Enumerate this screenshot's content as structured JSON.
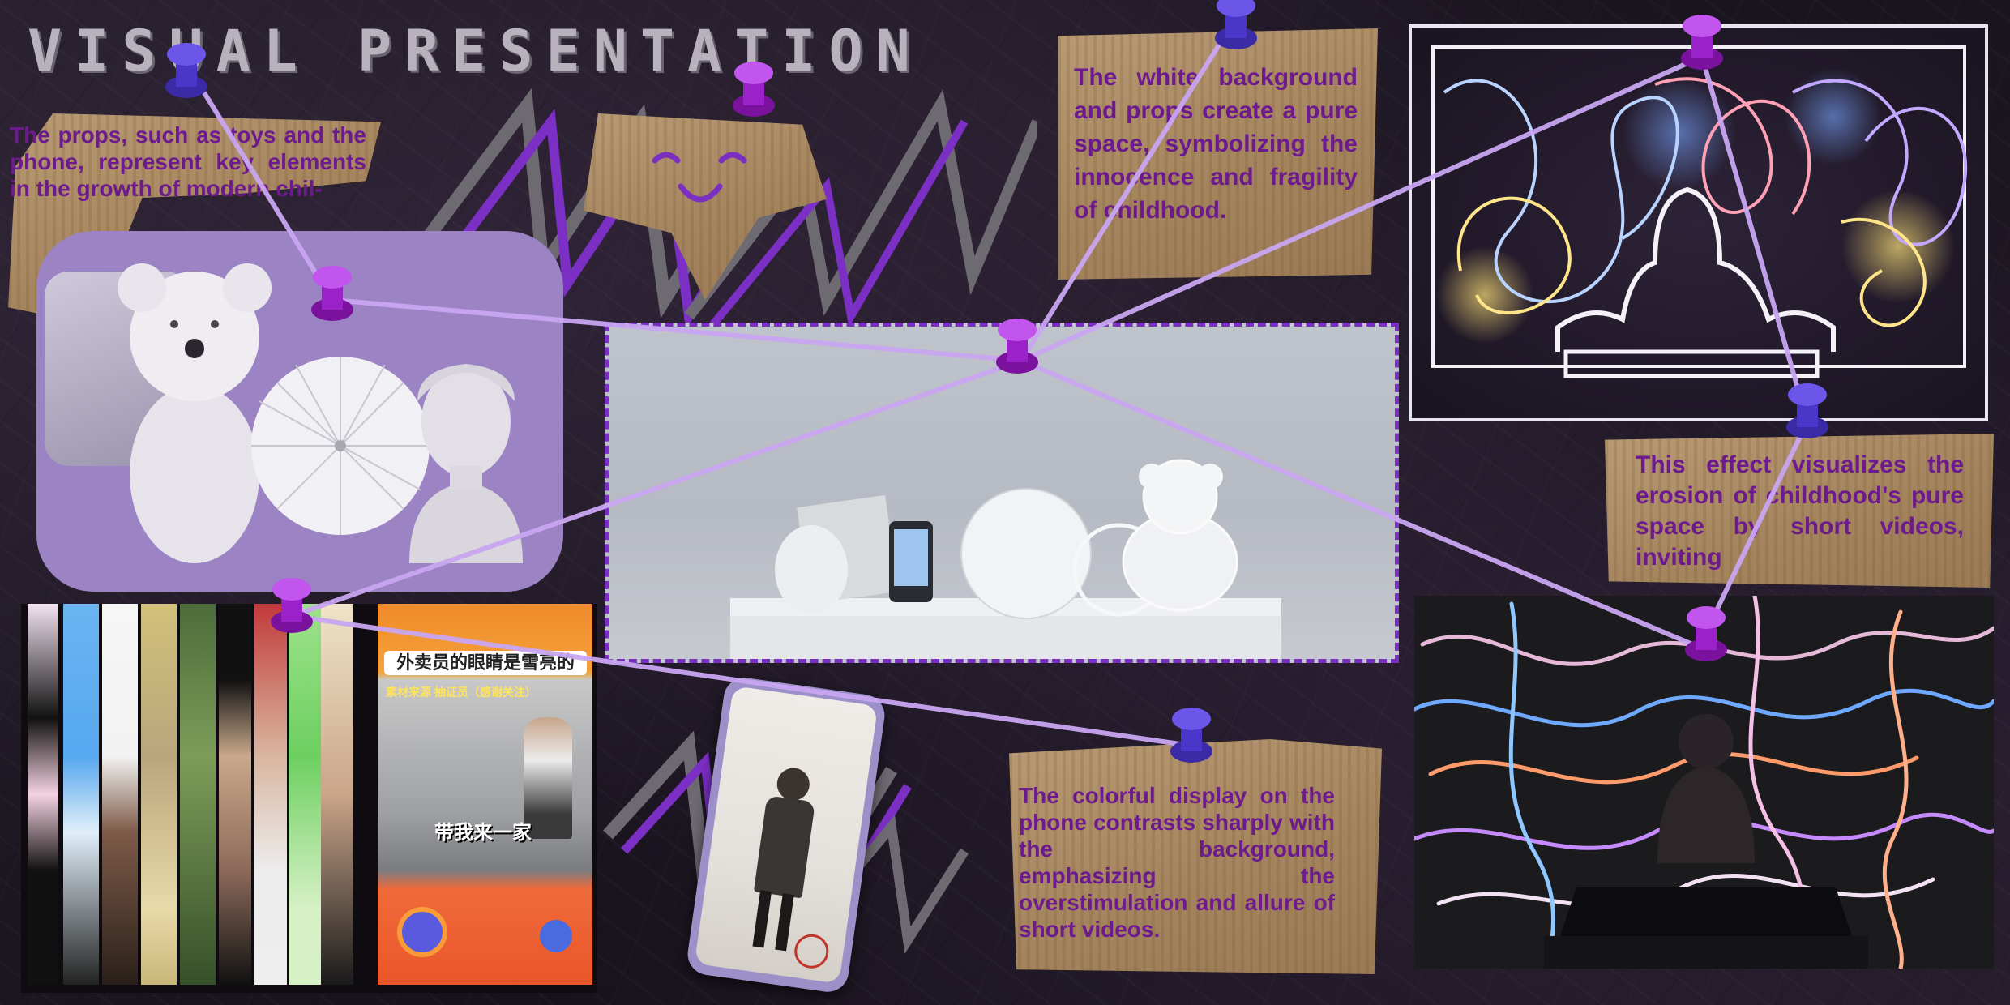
{
  "title": "VISUAL PRESENTATION",
  "notes": {
    "props": "The props, such as toys and the phone, represent key elements in the growth of modern chil-",
    "white_background": "The white background and props create a pure space, symbolizing the innocence and fragility of childhood.",
    "effect": "This effect visualizes the erosion of childhood's pure space by short videos, inviting",
    "phone_display": "The colorful display on the phone contrasts sharply with the background, emphasizing the overstimulation and allure of short videos."
  },
  "video_texts": {
    "headline": "外卖员的眼睛是雪亮的",
    "caption": "带我来一家",
    "subtitle": "素材来源 抽证员（感谢关注）"
  },
  "colors": {
    "pin": "#8a1fd0",
    "pin_blue": "#5b3fd8",
    "string": "#c9a6f2",
    "cardboard": "#a88a62",
    "note_text": "#6d1a8f",
    "accent_purple": "#7a2fc0"
  },
  "icons": [
    "pushpin-icon",
    "smiley-face-icon",
    "zigzag-decoration"
  ]
}
